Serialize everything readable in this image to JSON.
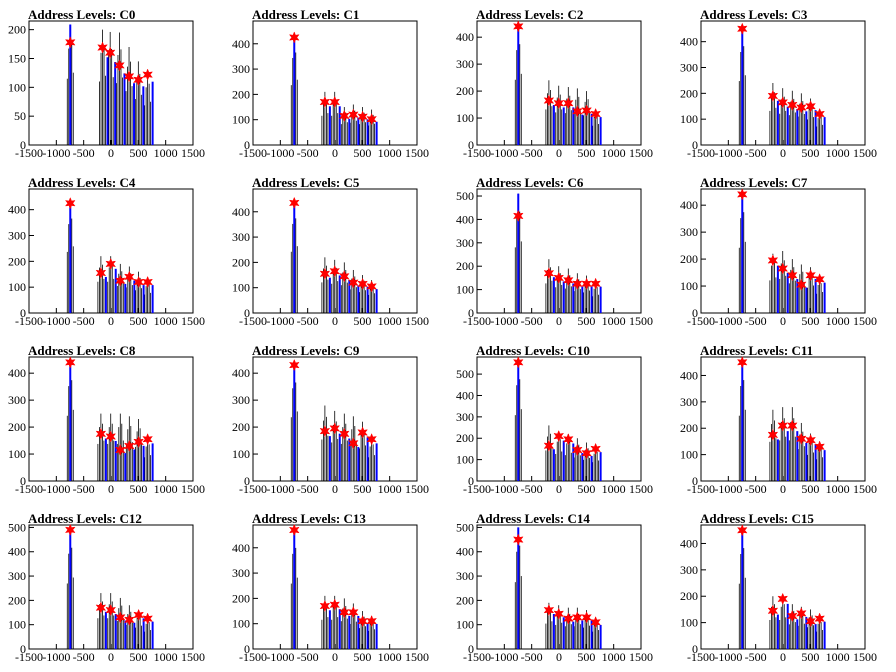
{
  "chart_data": [
    {
      "type": "bar",
      "title": "Address Levels: C0",
      "xlim": [
        -1500,
        1500
      ],
      "ylim": [
        0,
        215
      ],
      "yticks": [
        0,
        50,
        100,
        150,
        200
      ],
      "xticks": [
        -1500,
        -1000,
        -500,
        0,
        500,
        1000,
        1500
      ],
      "series": [
        {
          "x": [
            -745,
            -155,
            -15,
            155,
            330,
            500,
            670
          ],
          "values": [
            209,
            200,
            196,
            195,
            170,
            145,
            125
          ]
        },
        {
          "x": [
            -745,
            -155,
            -15,
            155,
            330,
            500,
            670
          ],
          "values": [
            178,
            169,
            160,
            138,
            119,
            113,
            122
          ]
        }
      ]
    },
    {
      "type": "bar",
      "title": "Address Levels: C1",
      "xlim": [
        -1500,
        1500
      ],
      "ylim": [
        0,
        490
      ],
      "yticks": [
        0,
        100,
        200,
        300,
        400
      ],
      "xticks": [
        -1500,
        -1000,
        -500,
        0,
        500,
        1000,
        1500
      ],
      "series": [
        {
          "x": [
            -745,
            -185,
            -5,
            170,
            335,
            505,
            670
          ],
          "values": [
            430,
            210,
            210,
            150,
            160,
            150,
            140
          ]
        },
        {
          "x": [
            -745,
            -185,
            -5,
            170,
            335,
            505,
            670
          ],
          "values": [
            425,
            170,
            170,
            115,
            120,
            112,
            102
          ]
        }
      ]
    },
    {
      "type": "bar",
      "title": "Address Levels: C2",
      "xlim": [
        -1500,
        1500
      ],
      "ylim": [
        0,
        460
      ],
      "yticks": [
        0,
        100,
        200,
        300,
        400
      ],
      "xticks": [
        -1500,
        -1000,
        -500,
        0,
        500,
        1000,
        1500
      ],
      "series": [
        {
          "x": [
            -745,
            -185,
            -5,
            170,
            335,
            505,
            670
          ],
          "values": [
            440,
            240,
            220,
            215,
            210,
            200,
            130
          ]
        },
        {
          "x": [
            -745,
            -185,
            -5,
            170,
            335,
            505,
            670
          ],
          "values": [
            440,
            165,
            155,
            155,
            125,
            128,
            115
          ]
        }
      ]
    },
    {
      "type": "bar",
      "title": "Address Levels: C3",
      "xlim": [
        -1500,
        1500
      ],
      "ylim": [
        0,
        480
      ],
      "yticks": [
        0,
        100,
        200,
        300,
        400
      ],
      "xticks": [
        -1500,
        -1000,
        -500,
        0,
        500,
        1000,
        1500
      ],
      "series": [
        {
          "x": [
            -745,
            -185,
            -5,
            170,
            335,
            505,
            670
          ],
          "values": [
            450,
            240,
            220,
            210,
            200,
            180,
            130
          ]
        },
        {
          "x": [
            -745,
            -185,
            -5,
            170,
            335,
            505,
            670
          ],
          "values": [
            450,
            190,
            165,
            155,
            145,
            150,
            120
          ]
        }
      ]
    },
    {
      "type": "bar",
      "title": "Address Levels: C4",
      "xlim": [
        -1500,
        1500
      ],
      "ylim": [
        0,
        480
      ],
      "yticks": [
        0,
        100,
        200,
        300,
        400
      ],
      "xticks": [
        -1500,
        -1000,
        -500,
        0,
        500,
        1000,
        1500
      ],
      "series": [
        {
          "x": [
            -745,
            -185,
            -5,
            170,
            335,
            505,
            670
          ],
          "values": [
            430,
            220,
            220,
            190,
            180,
            160,
            130
          ]
        },
        {
          "x": [
            -745,
            -185,
            -5,
            170,
            335,
            505,
            670
          ],
          "values": [
            425,
            155,
            190,
            125,
            140,
            120,
            120
          ]
        }
      ]
    },
    {
      "type": "bar",
      "title": "Address Levels: C5",
      "xlim": [
        -1500,
        1500
      ],
      "ylim": [
        0,
        490
      ],
      "yticks": [
        0,
        100,
        200,
        300,
        400
      ],
      "xticks": [
        -1500,
        -1000,
        -500,
        0,
        500,
        1000,
        1500
      ],
      "series": [
        {
          "x": [
            -745,
            -185,
            -5,
            170,
            335,
            505,
            670
          ],
          "values": [
            440,
            220,
            210,
            200,
            170,
            150,
            130
          ]
        },
        {
          "x": [
            -745,
            -185,
            -5,
            170,
            335,
            505,
            670
          ],
          "values": [
            435,
            155,
            165,
            145,
            120,
            115,
            105
          ]
        }
      ]
    },
    {
      "type": "bar",
      "title": "Address Levels: C6",
      "xlim": [
        -1500,
        1500
      ],
      "ylim": [
        0,
        530
      ],
      "yticks": [
        0,
        100,
        200,
        300,
        400,
        500
      ],
      "xticks": [
        -1500,
        -1000,
        -500,
        0,
        500,
        1000,
        1500
      ],
      "series": [
        {
          "x": [
            -745,
            -185,
            -5,
            170,
            335,
            505,
            670
          ],
          "values": [
            510,
            230,
            200,
            190,
            170,
            160,
            130
          ]
        },
        {
          "x": [
            -745,
            -185,
            -5,
            170,
            335,
            505,
            670
          ],
          "values": [
            415,
            170,
            150,
            140,
            125,
            125,
            125
          ]
        }
      ]
    },
    {
      "type": "bar",
      "title": "Address Levels: C7",
      "xlim": [
        -1500,
        1500
      ],
      "ylim": [
        0,
        460
      ],
      "yticks": [
        0,
        100,
        200,
        300,
        400
      ],
      "xticks": [
        -1500,
        -1000,
        -500,
        0,
        500,
        1000,
        1500
      ],
      "series": [
        {
          "x": [
            -745,
            -185,
            -5,
            170,
            335,
            505,
            670
          ],
          "values": [
            440,
            220,
            230,
            200,
            180,
            170,
            130
          ]
        },
        {
          "x": [
            -745,
            -185,
            -5,
            170,
            335,
            505,
            670
          ],
          "values": [
            440,
            195,
            165,
            140,
            105,
            140,
            125
          ]
        }
      ]
    },
    {
      "type": "bar",
      "title": "Address Levels: C8",
      "xlim": [
        -1500,
        1500
      ],
      "ylim": [
        0,
        460
      ],
      "yticks": [
        0,
        100,
        200,
        300,
        400
      ],
      "xticks": [
        -1500,
        -1000,
        -500,
        0,
        500,
        1000,
        1500
      ],
      "series": [
        {
          "x": [
            -745,
            -185,
            -5,
            170,
            335,
            505,
            670
          ],
          "values": [
            440,
            250,
            250,
            250,
            240,
            230,
            160
          ]
        },
        {
          "x": [
            -745,
            -185,
            -5,
            170,
            335,
            505,
            670
          ],
          "values": [
            440,
            175,
            165,
            115,
            130,
            145,
            155
          ]
        }
      ]
    },
    {
      "type": "bar",
      "title": "Address Levels: C9",
      "xlim": [
        -1500,
        1500
      ],
      "ylim": [
        0,
        460
      ],
      "yticks": [
        0,
        100,
        200,
        300,
        400
      ],
      "xticks": [
        -1500,
        -1000,
        -500,
        0,
        500,
        1000,
        1500
      ],
      "series": [
        {
          "x": [
            -745,
            -185,
            -5,
            170,
            335,
            505,
            670
          ],
          "values": [
            430,
            280,
            260,
            250,
            240,
            220,
            160
          ]
        },
        {
          "x": [
            -745,
            -185,
            -5,
            170,
            335,
            505,
            670
          ],
          "values": [
            430,
            185,
            195,
            175,
            140,
            180,
            155
          ]
        }
      ]
    },
    {
      "type": "bar",
      "title": "Address Levels: C10",
      "xlim": [
        -1500,
        1500
      ],
      "ylim": [
        0,
        580
      ],
      "yticks": [
        0,
        100,
        200,
        300,
        400,
        500
      ],
      "xticks": [
        -1500,
        -1000,
        -500,
        0,
        500,
        1000,
        1500
      ],
      "series": [
        {
          "x": [
            -745,
            -185,
            -5,
            170,
            335,
            505,
            670
          ],
          "values": [
            560,
            260,
            230,
            220,
            200,
            180,
            160
          ]
        },
        {
          "x": [
            -745,
            -185,
            -5,
            170,
            335,
            505,
            670
          ],
          "values": [
            555,
            165,
            210,
            195,
            145,
            130,
            150
          ]
        }
      ]
    },
    {
      "type": "bar",
      "title": "Address Levels: C11",
      "xlim": [
        -1500,
        1500
      ],
      "ylim": [
        0,
        470
      ],
      "yticks": [
        0,
        100,
        200,
        300,
        400
      ],
      "xticks": [
        -1500,
        -1000,
        -500,
        0,
        500,
        1000,
        1500
      ],
      "series": [
        {
          "x": [
            -745,
            -185,
            -5,
            170,
            335,
            505,
            670
          ],
          "values": [
            450,
            270,
            280,
            280,
            220,
            180,
            150
          ]
        },
        {
          "x": [
            -745,
            -185,
            -5,
            170,
            335,
            505,
            670
          ],
          "values": [
            450,
            175,
            210,
            210,
            160,
            155,
            130
          ]
        }
      ]
    },
    {
      "type": "bar",
      "title": "Address Levels: C12",
      "xlim": [
        -1500,
        1500
      ],
      "ylim": [
        0,
        510
      ],
      "yticks": [
        0,
        100,
        200,
        300,
        400,
        500
      ],
      "xticks": [
        -1500,
        -1000,
        -500,
        0,
        500,
        1000,
        1500
      ],
      "series": [
        {
          "x": [
            -745,
            -185,
            -5,
            170,
            335,
            505,
            670
          ],
          "values": [
            490,
            230,
            230,
            210,
            180,
            160,
            130
          ]
        },
        {
          "x": [
            -745,
            -185,
            -5,
            170,
            335,
            505,
            670
          ],
          "values": [
            490,
            170,
            160,
            130,
            120,
            140,
            125
          ]
        }
      ]
    },
    {
      "type": "bar",
      "title": "Address Levels: C13",
      "xlim": [
        -1500,
        1500
      ],
      "ylim": [
        0,
        490
      ],
      "yticks": [
        0,
        100,
        200,
        300,
        400
      ],
      "xticks": [
        -1500,
        -1000,
        -500,
        0,
        500,
        1000,
        1500
      ],
      "series": [
        {
          "x": [
            -745,
            -185,
            -5,
            170,
            335,
            505,
            670
          ],
          "values": [
            470,
            210,
            210,
            200,
            180,
            150,
            130
          ]
        },
        {
          "x": [
            -745,
            -185,
            -5,
            170,
            335,
            505,
            670
          ],
          "values": [
            470,
            170,
            175,
            145,
            145,
            110,
            110
          ]
        }
      ]
    },
    {
      "type": "bar",
      "title": "Address Levels: C14",
      "xlim": [
        -1500,
        1500
      ],
      "ylim": [
        0,
        510
      ],
      "yticks": [
        0,
        100,
        200,
        300,
        400,
        500
      ],
      "xticks": [
        -1500,
        -1000,
        -500,
        0,
        500,
        1000,
        1500
      ],
      "series": [
        {
          "x": [
            -745,
            -185,
            -5,
            170,
            335,
            505,
            670
          ],
          "values": [
            500,
            190,
            180,
            170,
            170,
            160,
            130
          ]
        },
        {
          "x": [
            -745,
            -185,
            -5,
            170,
            335,
            505,
            670
          ],
          "values": [
            450,
            160,
            145,
            125,
            130,
            130,
            110
          ]
        }
      ]
    },
    {
      "type": "bar",
      "title": "Address Levels: C15",
      "xlim": [
        -1500,
        1500
      ],
      "ylim": [
        0,
        470
      ],
      "yticks": [
        0,
        100,
        200,
        300,
        400
      ],
      "xticks": [
        -1500,
        -1000,
        -500,
        0,
        500,
        1000,
        1500
      ],
      "series": [
        {
          "x": [
            -745,
            -185,
            -5,
            170,
            335,
            505,
            670
          ],
          "values": [
            450,
            200,
            200,
            170,
            160,
            150,
            120
          ]
        },
        {
          "x": [
            -745,
            -185,
            -5,
            170,
            335,
            505,
            670
          ],
          "values": [
            450,
            145,
            190,
            125,
            135,
            105,
            115
          ]
        }
      ]
    }
  ],
  "colors": {
    "black_hist": "#000000",
    "blue_hist": "#0000ff",
    "marker": "#ff0000",
    "axis": "#000000"
  }
}
